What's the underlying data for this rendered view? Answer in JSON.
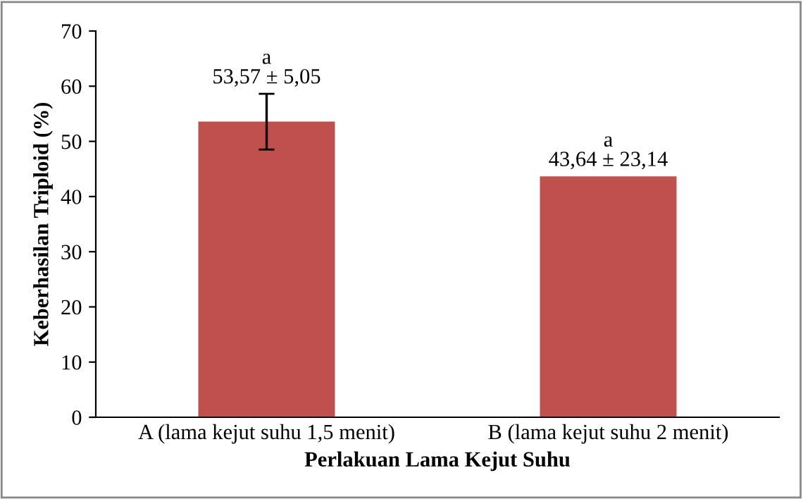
{
  "chart_data": {
    "type": "bar",
    "categories": [
      "A (lama kejut suhu 1,5 menit)",
      "B (lama kejut suhu 2 menit)"
    ],
    "values": [
      53.57,
      43.64
    ],
    "errors": [
      5.05,
      null
    ],
    "value_labels": [
      "a\n53,57 ± 5,05",
      "a\n43,64 ± 23,14"
    ],
    "color": "#c0504d",
    "xlabel": "Perlakuan Lama Kejut Suhu",
    "ylabel": "Keberhasilan Triploid (%)",
    "ylim": [
      0,
      70
    ],
    "yticks": [
      0,
      10,
      20,
      30,
      40,
      50,
      60,
      70
    ],
    "grid": false,
    "legend": false
  }
}
